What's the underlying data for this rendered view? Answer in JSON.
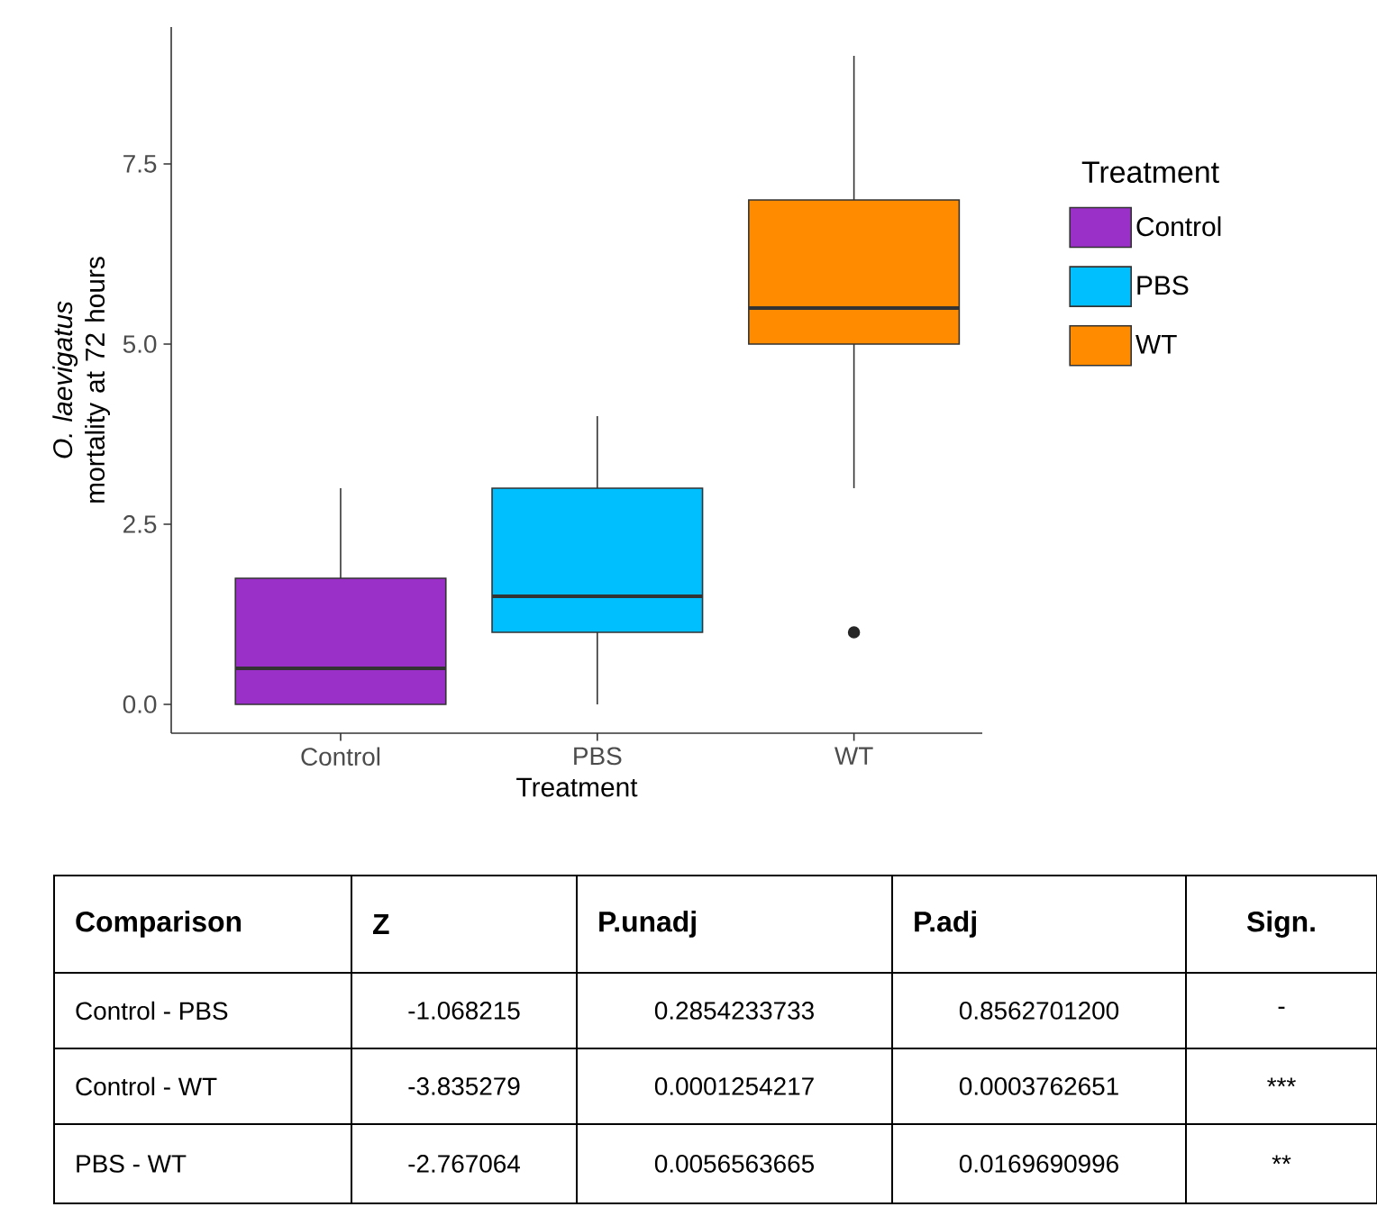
{
  "chart_data": {
    "type": "box",
    "xlabel": "Treatment",
    "ylabel": "*O. laevigatus* mortality at 72 hours",
    "legend_title": "Treatment",
    "legend": "right",
    "categories": [
      "Control",
      "PBS",
      "WT"
    ],
    "series": [
      {
        "name": "Control",
        "color": "#9b30c8",
        "boxes": [
          {
            "low": 0,
            "q1": 0,
            "median": 0.5,
            "q3": 1.75,
            "high": 3.0
          },
          null,
          null
        ]
      },
      {
        "name": "PBS",
        "color": "#00bfff",
        "boxes": [
          null,
          {
            "low": 0,
            "q1": 1.0,
            "median": 1.5,
            "q3": 3.0,
            "high": 4.0
          },
          null
        ]
      },
      {
        "name": "WT",
        "color": "#ff8c00",
        "boxes": [
          null,
          null,
          {
            "low": 3.0,
            "q1": 5.0,
            "median": 5.5,
            "q3": 7.0,
            "high": 9.0,
            "outliers": [
              1.0
            ]
          }
        ]
      }
    ],
    "ylim": [
      -0.4,
      9.4
    ],
    "yticks": [
      {
        "value": 0,
        "label": "0.0"
      },
      {
        "value": 2.5,
        "label": "2.5"
      },
      {
        "value": 5,
        "label": "5.0"
      },
      {
        "value": 7.5,
        "label": "7.5"
      }
    ],
    "annotations": [
      "Comparison",
      "Z",
      "P.unadj",
      "P.adj",
      "Sign.",
      "Control - PBS",
      "-1.068215",
      "0.2854233733",
      "0.8562701200",
      "-",
      "Control - WT",
      "-3.835279",
      "0.0001254217",
      "0.0003762651",
      "***",
      "PBS - WT",
      "-2.767064",
      "0.0056563665",
      "0.0169690996",
      "**"
    ]
  }
}
